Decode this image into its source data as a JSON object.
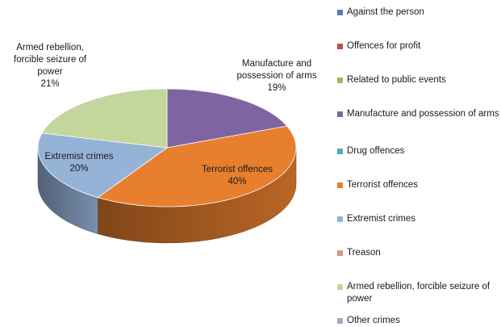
{
  "chart_data": {
    "type": "pie",
    "title": "",
    "slices": [
      {
        "label": "Against the person",
        "value": 0,
        "color": "#4f81bd"
      },
      {
        "label": "Offences for profit",
        "value": 0,
        "color": "#c0504d"
      },
      {
        "label": "Related to public events",
        "value": 0,
        "color": "#9bbb59"
      },
      {
        "label": "Manufacture and possession of arms",
        "value": 19,
        "color": "#8064a2",
        "data_label": [
          "Manufacture and",
          "possession of arms",
          "19%"
        ]
      },
      {
        "label": "Drug offences",
        "value": 0,
        "color": "#4bacc6"
      },
      {
        "label": "Terrorist offences",
        "value": 40,
        "color": "#e87f2e",
        "data_label": [
          "Terrorist offences",
          "40%"
        ]
      },
      {
        "label": "Extremist crimes",
        "value": 20,
        "color": "#95b3d7",
        "data_label": [
          "Extremist crimes",
          "20%"
        ]
      },
      {
        "label": "Treason",
        "value": 0,
        "color": "#d99694"
      },
      {
        "label": "Armed rebellion,  forcible seizure of power",
        "value": 21,
        "color": "#c3d69b",
        "data_label": [
          "Armed rebellion,",
          "forcible seizure of",
          "power",
          "21%"
        ]
      },
      {
        "label": "Other crimes",
        "value": 0,
        "color": "#b3a2c7"
      }
    ],
    "legend_position": "right",
    "style": "3d"
  }
}
